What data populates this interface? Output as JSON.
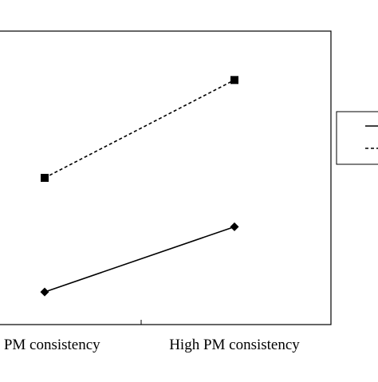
{
  "chart_data": {
    "type": "line",
    "categories": [
      "w PM consistency",
      "High PM consistency"
    ],
    "series": [
      {
        "values": [
          1.0,
          3.0
        ],
        "style": "solid",
        "marker": "diamond"
      },
      {
        "values": [
          4.5,
          7.5
        ],
        "style": "dashed",
        "marker": "square"
      }
    ],
    "ylim": [
      0,
      9
    ],
    "grid": false,
    "legend_position": "right",
    "colors": {
      "line": "#000000",
      "frame": "#000000",
      "background": "#ffffff"
    }
  }
}
